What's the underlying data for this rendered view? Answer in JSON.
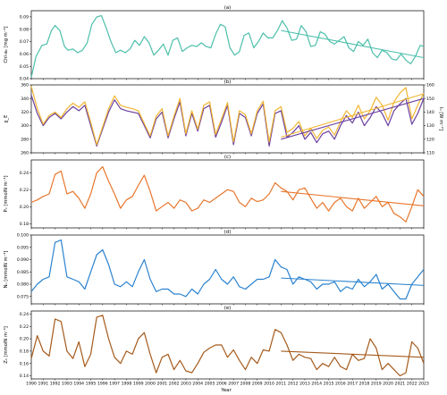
{
  "figure": {
    "xlabel": "Year",
    "x_ticks": [
      "1990",
      "1991",
      "1992",
      "1993",
      "1994",
      "1995",
      "1996",
      "1997",
      "1998",
      "1999",
      "2000",
      "2001",
      "2002",
      "2003",
      "2004",
      "2005",
      "2006",
      "2007",
      "2008",
      "2009",
      "2010",
      "2011",
      "2012",
      "2013",
      "2014",
      "2015",
      "2016",
      "2017",
      "2018",
      "2019",
      "2020",
      "2021",
      "2022",
      "2023"
    ]
  },
  "chart_data": [
    {
      "type": "line",
      "title": "(a)",
      "ylabel": "Chl-a₀ [mg m⁻³]",
      "xlim": [
        1990,
        2023
      ],
      "ylim": [
        0.04,
        0.095
      ],
      "y_ticks": [
        "0.04",
        "0.05",
        "0.06",
        "0.07",
        "0.08",
        "0.09"
      ],
      "colors": {
        "series": "#4cbfaa",
        "trend": "#4cbfaa"
      },
      "series": [
        {
          "x": [
            1990,
            1990.4,
            1990.9,
            1991.3,
            1991.7,
            1992,
            1992.4,
            1992.8,
            1993.1,
            1993.5,
            1993.9,
            1994.3,
            1994.7,
            1995.1,
            1995.5,
            1995.9,
            1996.3,
            1996.7,
            1997.1,
            1997.5,
            1997.9,
            1998.3,
            1998.7,
            1999.1,
            1999.5,
            1999.9,
            2000.3,
            2000.7,
            2001.1,
            2001.5,
            2001.9,
            2002.3,
            2002.7,
            2003.1,
            2003.5,
            2003.9,
            2004.3,
            2004.7,
            2005.1,
            2005.5,
            2005.9,
            2006.3,
            2006.7,
            2007.1,
            2007.5,
            2007.9,
            2008.3,
            2008.7,
            2009.1,
            2009.5,
            2009.9,
            2010.3,
            2010.7,
            2011.1,
            2011.5,
            2011.9,
            2012.3,
            2012.7,
            2013.1,
            2013.5,
            2013.9,
            2014.3,
            2014.7,
            2015.1,
            2015.5,
            2015.9,
            2016.3,
            2016.7,
            2017.1,
            2017.5,
            2017.9,
            2018.3,
            2018.7,
            2019.1,
            2019.5,
            2019.9,
            2020.3,
            2020.7,
            2021.1,
            2021.5,
            2021.9,
            2022.3,
            2022.7,
            2023
          ],
          "y": [
            0.041,
            0.058,
            0.067,
            0.068,
            0.079,
            0.083,
            0.079,
            0.066,
            0.063,
            0.064,
            0.061,
            0.063,
            0.069,
            0.084,
            0.09,
            0.091,
            0.081,
            0.07,
            0.061,
            0.063,
            0.061,
            0.064,
            0.071,
            0.067,
            0.074,
            0.069,
            0.059,
            0.063,
            0.068,
            0.059,
            0.071,
            0.073,
            0.062,
            0.065,
            0.067,
            0.066,
            0.069,
            0.066,
            0.065,
            0.076,
            0.084,
            0.082,
            0.065,
            0.059,
            0.062,
            0.075,
            0.077,
            0.065,
            0.07,
            0.077,
            0.073,
            0.073,
            0.079,
            0.087,
            0.081,
            0.071,
            0.072,
            0.083,
            0.078,
            0.066,
            0.067,
            0.078,
            0.076,
            0.07,
            0.068,
            0.071,
            0.074,
            0.065,
            0.062,
            0.07,
            0.067,
            0.072,
            0.061,
            0.057,
            0.063,
            0.061,
            0.056,
            0.055,
            0.06,
            0.055,
            0.052,
            0.058,
            0.067,
            0.066
          ]
        }
      ],
      "trend": {
        "x": [
          2011,
          2023
        ],
        "y": [
          0.079,
          0.057
        ]
      }
    },
    {
      "type": "line",
      "title": "(b)",
      "ylabel": "χ_E",
      "ylabel_right": "I₀ [W m⁻²]",
      "xlim": [
        1990,
        2023
      ],
      "ylim": [
        260,
        360
      ],
      "ylim_right": [
        110,
        160
      ],
      "y_ticks": [
        "260",
        "280",
        "300",
        "320",
        "340",
        "360"
      ],
      "y_ticks_right": [
        "110",
        "120",
        "130",
        "140",
        "150",
        "160"
      ],
      "colors": {
        "series1": "#6a3fa0",
        "series2": "#f2b632",
        "trend1": "#6a3fa0",
        "trend2": "#f2b632"
      },
      "series": [
        {
          "x": [
            1990,
            1990.5,
            1991,
            1991.5,
            1992,
            1992.5,
            1993,
            1993.5,
            1994,
            1994.5,
            1995,
            1995.5,
            1996,
            1996.5,
            1997,
            1997.5,
            1998,
            1998.5,
            1999,
            1999.5,
            2000,
            2000.5,
            2001,
            2001.5,
            2002,
            2002.5,
            2003,
            2003.5,
            2004,
            2004.5,
            2005,
            2005.5,
            2006,
            2006.5,
            2007,
            2007.5,
            2008,
            2008.5,
            2009,
            2009.5,
            2010,
            2010.5,
            2011,
            2011.5,
            2012,
            2012.5,
            2013,
            2013.5,
            2014,
            2014.5,
            2015,
            2015.5,
            2016,
            2016.5,
            2017,
            2017.5,
            2018,
            2018.5,
            2019,
            2019.5,
            2020,
            2020.5,
            2021,
            2021.5,
            2022,
            2022.5,
            2023
          ],
          "y": [
            345,
            318,
            300,
            312,
            318,
            310,
            320,
            328,
            322,
            330,
            300,
            270,
            295,
            320,
            338,
            325,
            322,
            320,
            318,
            300,
            282,
            310,
            320,
            282,
            310,
            335,
            285,
            318,
            292,
            325,
            330,
            283,
            305,
            330,
            272,
            318,
            312,
            285,
            318,
            332,
            270,
            318,
            322,
            283,
            290,
            300,
            280,
            290,
            275,
            288,
            292,
            280,
            300,
            315,
            304,
            320,
            300,
            312,
            328,
            318,
            300,
            322,
            332,
            340,
            302,
            318,
            340
          ]
        },
        {
          "x": [
            1990,
            1990.5,
            1991,
            1991.5,
            1992,
            1992.5,
            1993,
            1993.5,
            1994,
            1994.5,
            1995,
            1995.5,
            1996,
            1996.5,
            1997,
            1997.5,
            1998,
            1998.5,
            1999,
            1999.5,
            2000,
            2000.5,
            2001,
            2001.5,
            2002,
            2002.5,
            2003,
            2003.5,
            2004,
            2004.5,
            2005,
            2005.5,
            2006,
            2006.5,
            2007,
            2007.5,
            2008,
            2008.5,
            2009,
            2009.5,
            2010,
            2010.5,
            2011,
            2011.5,
            2012,
            2012.5,
            2013,
            2013.5,
            2014,
            2014.5,
            2015,
            2015.5,
            2016,
            2016.5,
            2017,
            2017.5,
            2018,
            2018.5,
            2019,
            2019.5,
            2020,
            2020.5,
            2021,
            2021.5,
            2022,
            2022.5,
            2023
          ],
          "y": [
            358,
            325,
            302,
            315,
            320,
            312,
            325,
            333,
            327,
            335,
            305,
            272,
            298,
            325,
            344,
            330,
            327,
            325,
            322,
            303,
            285,
            314,
            325,
            285,
            314,
            340,
            288,
            322,
            295,
            330,
            335,
            287,
            310,
            334,
            276,
            322,
            316,
            288,
            322,
            336,
            276,
            322,
            328,
            290,
            296,
            306,
            285,
            296,
            281,
            293,
            298,
            286,
            306,
            322,
            312,
            330,
            310,
            322,
            342,
            330,
            308,
            335,
            348,
            356,
            310,
            330,
            348
          ]
        }
      ],
      "trends": [
        {
          "name": "χ_E trend",
          "x": [
            2011,
            2023
          ],
          "y": [
            280,
            340
          ]
        },
        {
          "name": "I₀ trend",
          "x": [
            2011,
            2023
          ],
          "y": [
            283,
            347
          ]
        }
      ]
    },
    {
      "type": "line",
      "title": "(c)",
      "ylabel": "P₀ [mmolN m⁻³]",
      "xlim": [
        1990,
        2023
      ],
      "ylim": [
        0.175,
        0.255
      ],
      "y_ticks": [
        "0.18",
        "0.20",
        "0.22",
        "0.24"
      ],
      "colors": {
        "series": "#e8762c",
        "trend": "#e8762c"
      },
      "series": [
        {
          "x": [
            1990,
            1990.5,
            1991,
            1991.5,
            1992,
            1992.5,
            1993,
            1993.5,
            1994,
            1994.5,
            1995,
            1995.5,
            1996,
            1996.5,
            1997,
            1997.5,
            1998,
            1998.5,
            1999,
            1999.5,
            2000,
            2000.5,
            2001,
            2001.5,
            2002,
            2002.5,
            2003,
            2003.5,
            2004,
            2004.5,
            2005,
            2005.5,
            2006,
            2006.5,
            2007,
            2007.5,
            2008,
            2008.5,
            2009,
            2009.5,
            2010,
            2010.5,
            2011,
            2011.5,
            2012,
            2012.5,
            2013,
            2013.5,
            2014,
            2014.5,
            2015,
            2015.5,
            2016,
            2016.5,
            2017,
            2017.5,
            2018,
            2018.5,
            2019,
            2019.5,
            2020,
            2020.5,
            2021,
            2021.5,
            2022,
            2022.5,
            2023
          ],
          "y": [
            0.205,
            0.208,
            0.212,
            0.215,
            0.238,
            0.242,
            0.215,
            0.218,
            0.21,
            0.198,
            0.215,
            0.24,
            0.247,
            0.23,
            0.215,
            0.198,
            0.208,
            0.212,
            0.225,
            0.237,
            0.218,
            0.195,
            0.2,
            0.205,
            0.198,
            0.208,
            0.205,
            0.195,
            0.198,
            0.208,
            0.205,
            0.21,
            0.215,
            0.22,
            0.218,
            0.205,
            0.2,
            0.21,
            0.206,
            0.208,
            0.215,
            0.228,
            0.222,
            0.218,
            0.208,
            0.22,
            0.222,
            0.21,
            0.198,
            0.205,
            0.195,
            0.205,
            0.21,
            0.2,
            0.195,
            0.21,
            0.198,
            0.205,
            0.212,
            0.2,
            0.205,
            0.192,
            0.188,
            0.182,
            0.2,
            0.22,
            0.212
          ]
        }
      ],
      "trend": {
        "x": [
          2011,
          2023
        ],
        "y": [
          0.218,
          0.201
        ]
      }
    },
    {
      "type": "line",
      "title": "(d)",
      "ylabel": "N₀ [mmolN m⁻³]",
      "xlim": [
        1990,
        2023
      ],
      "ylim": [
        0.072,
        0.1
      ],
      "y_ticks": [
        "0.075",
        "0.080",
        "0.085",
        "0.090",
        "0.095",
        "0.100"
      ],
      "colors": {
        "series": "#2a82cf",
        "trend": "#2a82cf"
      },
      "series": [
        {
          "x": [
            1990,
            1990.5,
            1991,
            1991.5,
            1992,
            1992.5,
            1993,
            1993.5,
            1994,
            1994.5,
            1995,
            1995.5,
            1996,
            1996.5,
            1997,
            1997.5,
            1998,
            1998.5,
            1999,
            1999.5,
            2000,
            2000.5,
            2001,
            2001.5,
            2002,
            2002.5,
            2003,
            2003.5,
            2004,
            2004.5,
            2005,
            2005.5,
            2006,
            2006.5,
            2007,
            2007.5,
            2008,
            2008.5,
            2009,
            2009.5,
            2010,
            2010.5,
            2011,
            2011.5,
            2012,
            2012.5,
            2013,
            2013.5,
            2014,
            2014.5,
            2015,
            2015.5,
            2016,
            2016.5,
            2017,
            2017.5,
            2018,
            2018.5,
            2019,
            2019.5,
            2020,
            2020.5,
            2021,
            2021.5,
            2022,
            2022.5,
            2023
          ],
          "y": [
            0.077,
            0.08,
            0.082,
            0.083,
            0.097,
            0.098,
            0.083,
            0.082,
            0.081,
            0.078,
            0.085,
            0.092,
            0.094,
            0.088,
            0.08,
            0.079,
            0.081,
            0.079,
            0.085,
            0.09,
            0.082,
            0.077,
            0.078,
            0.078,
            0.076,
            0.076,
            0.075,
            0.078,
            0.076,
            0.08,
            0.082,
            0.086,
            0.082,
            0.08,
            0.083,
            0.079,
            0.078,
            0.08,
            0.082,
            0.082,
            0.083,
            0.09,
            0.087,
            0.086,
            0.08,
            0.083,
            0.082,
            0.081,
            0.078,
            0.08,
            0.08,
            0.081,
            0.077,
            0.079,
            0.078,
            0.082,
            0.079,
            0.081,
            0.084,
            0.078,
            0.08,
            0.077,
            0.074,
            0.074,
            0.08,
            0.083,
            0.086
          ]
        }
      ],
      "trend": {
        "x": [
          2011,
          2023
        ],
        "y": [
          0.0825,
          0.0795
        ]
      }
    },
    {
      "type": "line",
      "title": "(e)",
      "ylabel": "Z₀ [mmolN m⁻³]",
      "xlim": [
        1990,
        2023
      ],
      "ylim": [
        0.135,
        0.245
      ],
      "y_ticks": [
        "0.14",
        "0.16",
        "0.18",
        "0.20",
        "0.22",
        "0.24"
      ],
      "colors": {
        "series": "#a55a1b",
        "trend": "#a55a1b"
      },
      "series": [
        {
          "x": [
            1990,
            1990.5,
            1991,
            1991.5,
            1992,
            1992.5,
            1993,
            1993.5,
            1994,
            1994.5,
            1995,
            1995.5,
            1996,
            1996.5,
            1997,
            1997.5,
            1998,
            1998.5,
            1999,
            1999.5,
            2000,
            2000.5,
            2001,
            2001.5,
            2002,
            2002.5,
            2003,
            2003.5,
            2004,
            2004.5,
            2005,
            2005.5,
            2006,
            2006.5,
            2007,
            2007.5,
            2008,
            2008.5,
            2009,
            2009.5,
            2010,
            2010.5,
            2011,
            2011.5,
            2012,
            2012.5,
            2013,
            2013.5,
            2014,
            2014.5,
            2015,
            2015.5,
            2016,
            2016.5,
            2017,
            2017.5,
            2018,
            2018.5,
            2019,
            2019.5,
            2020,
            2020.5,
            2021,
            2021.5,
            2022,
            2022.5,
            2023
          ],
          "y": [
            0.168,
            0.205,
            0.18,
            0.172,
            0.232,
            0.228,
            0.18,
            0.168,
            0.195,
            0.155,
            0.175,
            0.235,
            0.238,
            0.2,
            0.17,
            0.16,
            0.18,
            0.175,
            0.2,
            0.21,
            0.175,
            0.145,
            0.17,
            0.175,
            0.15,
            0.165,
            0.148,
            0.145,
            0.16,
            0.178,
            0.185,
            0.19,
            0.19,
            0.17,
            0.182,
            0.165,
            0.15,
            0.17,
            0.16,
            0.182,
            0.18,
            0.215,
            0.21,
            0.19,
            0.165,
            0.175,
            0.17,
            0.168,
            0.15,
            0.16,
            0.155,
            0.17,
            0.155,
            0.15,
            0.175,
            0.165,
            0.168,
            0.2,
            0.185,
            0.15,
            0.16,
            0.15,
            0.14,
            0.145,
            0.195,
            0.185,
            0.16
          ]
        }
      ],
      "trend": {
        "x": [
          2011,
          2023
        ],
        "y": [
          0.18,
          0.17
        ]
      }
    }
  ]
}
